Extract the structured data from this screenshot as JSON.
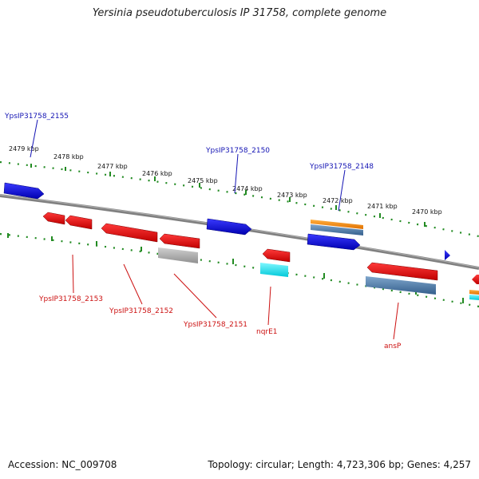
{
  "title": "Yersinia pseudotuberculosis IP 31758, complete genome",
  "accession": "Accession: NC_009708",
  "topology": "Topology: circular; Length: 4,723,306 bp; Genes: 4,257",
  "ruler_labels": [
    "2479 kbp",
    "2478 kbp",
    "2477 kbp",
    "2476 kbp",
    "2475 kbp",
    "2474 kbp",
    "2473 kbp",
    "2472 kbp",
    "2471 kbp",
    "2470 kbp"
  ],
  "genes_forward": [
    "YpsIP31758_2155",
    "YpsIP31758_2150",
    "YpsIP31758_2148"
  ],
  "genes_reverse": [
    "YpsIP31758_2153",
    "YpsIP31758_2152",
    "YpsIP31758_2151",
    "nqrE1",
    "ansP"
  ],
  "colors": {
    "forward_gene": "#1010d8",
    "reverse_gene": "#e01010",
    "backbone": "#808080",
    "ruler": "#228b22",
    "rna_cyan": "#00e0e0",
    "orange_feature": "#f08c10",
    "steelblue_feature": "#4a7aaa",
    "pseudo_gray": "#b0b0b0"
  }
}
